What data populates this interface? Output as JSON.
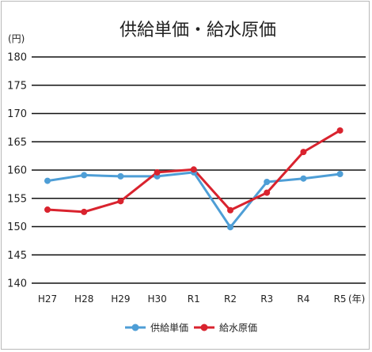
{
  "chart_data": {
    "type": "line",
    "title": "供給単価・給水原価",
    "y_unit": "(円)",
    "x_unit": "(年)",
    "categories": [
      "H27",
      "H28",
      "H29",
      "H30",
      "R1",
      "R2",
      "R3",
      "R4",
      "R5"
    ],
    "ylim": [
      140,
      180
    ],
    "yticks": [
      140,
      145,
      150,
      155,
      160,
      165,
      170,
      175,
      180
    ],
    "grid": true,
    "legend_position": "bottom",
    "series": [
      {
        "name": "供給単価",
        "color": "#4e9ed6",
        "values": [
          158.1,
          159.1,
          158.9,
          158.9,
          159.6,
          149.9,
          157.9,
          158.5,
          159.3
        ]
      },
      {
        "name": "給水原価",
        "color": "#d9232e",
        "values": [
          153.0,
          152.6,
          154.5,
          159.6,
          160.1,
          152.9,
          156.0,
          163.2,
          167.0
        ]
      }
    ]
  }
}
